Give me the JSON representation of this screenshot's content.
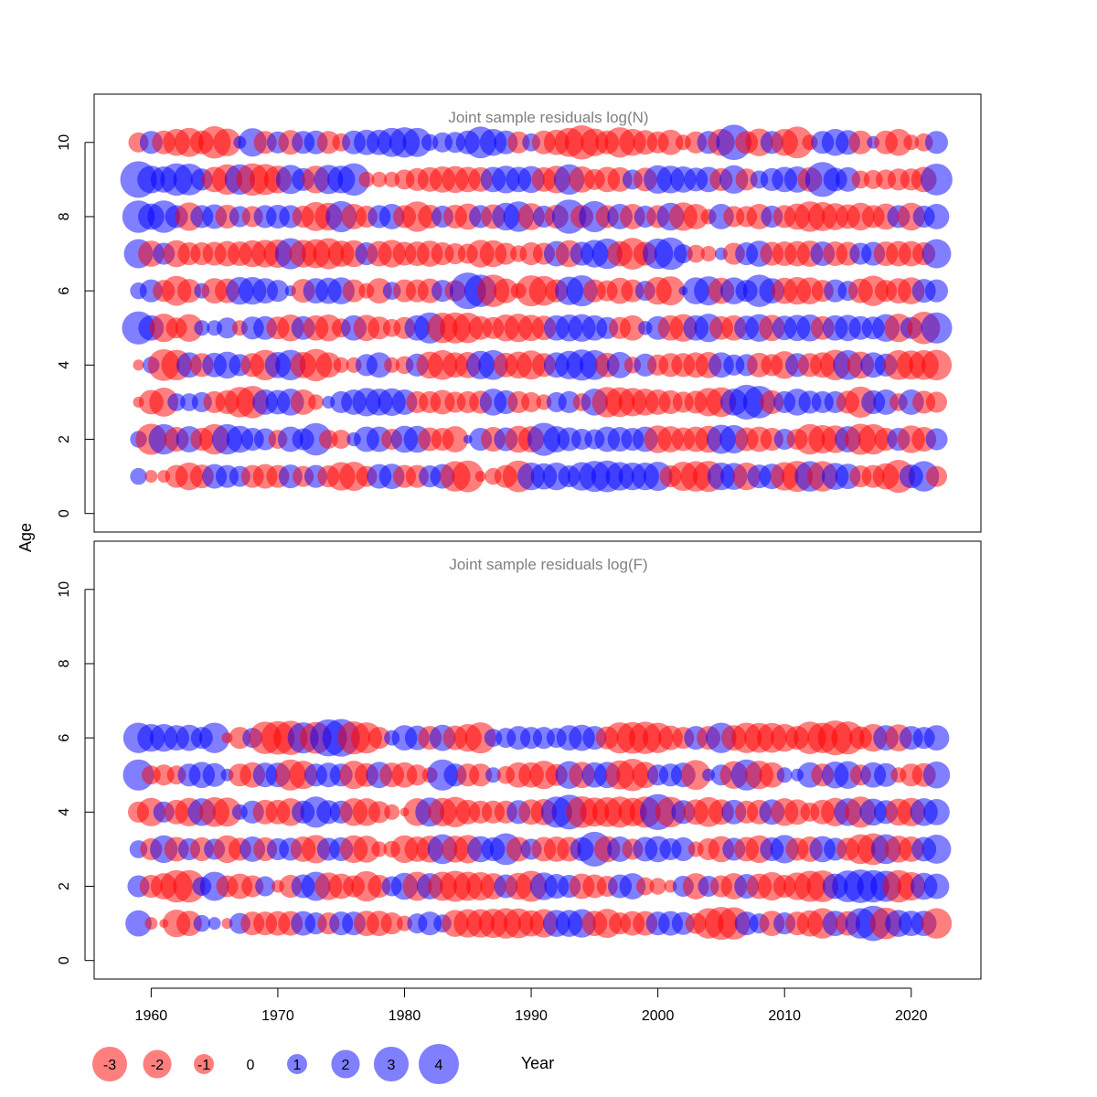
{
  "colors": {
    "negative": "#ff0000",
    "positive": "#0000ff",
    "frame": "#000000",
    "panel_title": "#808080"
  },
  "labels": {
    "ylabel": "Age",
    "xlabel": "Year"
  },
  "legend": {
    "items": [
      {
        "value": -3,
        "label": "-3"
      },
      {
        "value": -2,
        "label": "-2"
      },
      {
        "value": -1,
        "label": "-1"
      },
      {
        "value": 0,
        "label": "0"
      },
      {
        "value": 1,
        "label": "1"
      },
      {
        "value": 2,
        "label": "2"
      },
      {
        "value": 3,
        "label": "3"
      },
      {
        "value": 4,
        "label": "4"
      }
    ]
  },
  "chart_data": [
    {
      "type": "scatter",
      "title": "Joint sample residuals log(N)",
      "xlim": [
        1955.5,
        2025.5
      ],
      "ylim": [
        -0.5,
        11.3
      ],
      "xticks": [
        1960,
        1970,
        1980,
        1990,
        2000,
        2010,
        2020
      ],
      "yticks": [
        0,
        2,
        4,
        6,
        8,
        10
      ],
      "years": [
        1959,
        2022
      ],
      "ages": [
        1,
        2,
        3,
        4,
        5,
        6,
        7,
        8,
        9,
        10
      ],
      "residuals": {
        "1": [
          0.7,
          -0.4,
          -0.4,
          -1.3,
          -1.9,
          -1.4,
          1.5,
          1.3,
          1.1,
          -1.3,
          -1.5,
          -1.3,
          1.4,
          -1.1,
          1.3,
          -1.2,
          -2.0,
          -2.1,
          -1.1,
          1.5,
          1.6,
          -1.3,
          -1.3,
          1.2,
          1.5,
          -2.3,
          -2.5,
          -0.3,
          -0.7,
          -1.3,
          -2.5,
          1.9,
          1.7,
          1.9,
          1.2,
          2.0,
          2.4,
          2.5,
          2.0,
          1.9,
          1.9,
          2.1,
          -1.2,
          -2.1,
          -2.3,
          -2.4,
          1.9,
          1.8,
          -1.9,
          1.4,
          1.6,
          -2.0,
          -2.4,
          2.3,
          -2.3,
          1.8,
          1.6,
          -1.2,
          -1.3,
          -1.7,
          -2.7,
          1.4,
          2.3,
          -1.1
        ],
        "2": [
          0.7,
          -2.4,
          2.3,
          -1.5,
          1.7,
          -1.3,
          -2.3,
          2.3,
          1.8,
          1.3,
          1.2,
          -0.9,
          1.6,
          1.2,
          2.6,
          -0.9,
          -0.9,
          0.5,
          1.6,
          1.6,
          -1.1,
          1.8,
          1.8,
          -1.4,
          -1.3,
          -1.7,
          0.2,
          1.3,
          -1.5,
          1.4,
          -1.8,
          -1.7,
          2.7,
          1.7,
          1.4,
          1.1,
          1.0,
          1.6,
          1.5,
          1.3,
          1.6,
          -1.9,
          -1.7,
          -1.4,
          -1.6,
          -1.8,
          2.1,
          2.0,
          -1.4,
          -1.6,
          -1.3,
          1.1,
          -1.1,
          -2.3,
          -2.0,
          -1.9,
          1.7,
          -2.4,
          -2.3,
          -1.3,
          1.3,
          -1.9,
          -1.5,
          1.2
        ],
        "3": [
          -0.3,
          -1.5,
          -2.1,
          0.8,
          0.8,
          1.0,
          -1.2,
          -1.4,
          -2.3,
          -2.6,
          1.6,
          1.5,
          1.8,
          -1.6,
          -0.6,
          0.4,
          1.2,
          1.6,
          2.0,
          1.8,
          1.9,
          1.6,
          -1.2,
          -1.2,
          -1.5,
          -1.1,
          -1.2,
          -1.3,
          1.8,
          1.4,
          -1.2,
          -1.0,
          -0.6,
          1.0,
          1.2,
          -0.8,
          1.8,
          -2.3,
          -2.2,
          -2.0,
          -1.8,
          -1.6,
          -1.4,
          -1.1,
          -1.3,
          -2.0,
          -2.2,
          1.8,
          3.0,
          2.6,
          -1.4,
          1.2,
          1.8,
          1.3,
          1.2,
          1.2,
          -1.3,
          -2.4,
          1.4,
          1.6,
          -0.8,
          1.6,
          -1.3,
          -1.1
        ],
        "4": [
          -0.3,
          0.7,
          -2.5,
          -2.3,
          1.6,
          -1.4,
          1.5,
          1.8,
          1.2,
          -1.4,
          -2.3,
          1.7,
          2.3,
          -1.7,
          -2.6,
          -1.6,
          -0.6,
          -0.6,
          1.2,
          1.6,
          -0.6,
          -0.8,
          1.3,
          -1.8,
          -2.2,
          -1.6,
          -1.7,
          2.0,
          2.2,
          -1.5,
          -1.8,
          -2.1,
          -1.4,
          1.6,
          2.0,
          2.4,
          2.2,
          -1.5,
          1.7,
          -0.7,
          1.3,
          -1.1,
          -1.4,
          -1.4,
          -1.6,
          -1.7,
          1.6,
          1.1,
          1.2,
          -1.5,
          -1.2,
          -1.9,
          1.4,
          -1.4,
          -1.6,
          -2.3,
          2.2,
          -1.8,
          1.6,
          1.3,
          -2.2,
          -2.1,
          -2.2,
          -2.3
        ],
        "5": [
          2.7,
          1.6,
          -2.0,
          -1.1,
          -1.9,
          0.6,
          0.6,
          1.1,
          -0.6,
          1.3,
          1.4,
          -1.3,
          -1.8,
          1.4,
          -1.6,
          -1.8,
          -0.9,
          1.6,
          -1.7,
          -1.3,
          -0.8,
          -1.2,
          1.6,
          2.4,
          -2.3,
          -2.4,
          -2.3,
          -1.4,
          -1.2,
          -1.8,
          -2.0,
          -1.7,
          -1.5,
          1.6,
          1.8,
          1.9,
          1.6,
          1.2,
          -1.2,
          -1.6,
          0.5,
          1.4,
          -1.6,
          -1.9,
          1.6,
          2.0,
          -1.4,
          -1.6,
          1.5,
          1.9,
          -1.7,
          1.5,
          1.7,
          1.8,
          -1.4,
          1.6,
          1.7,
          1.4,
          1.3,
          1.9,
          -2.0,
          1.2,
          -2.6,
          2.4
        ],
        "6": [
          0.7,
          1.3,
          -1.2,
          -2.2,
          -1.4,
          0.6,
          -1.6,
          -1.5,
          1.9,
          1.9,
          1.6,
          1.2,
          0.3,
          -1.4,
          1.6,
          1.7,
          1.8,
          -1.3,
          -0.6,
          -1.6,
          0.8,
          -1.3,
          -1.3,
          -1.5,
          1.2,
          -1.1,
          3.3,
          2.6,
          -2.6,
          -1.5,
          -0.6,
          -2.4,
          -2.2,
          -1.3,
          2.0,
          2.4,
          -1.3,
          -1.1,
          -1.7,
          -1.3,
          1.0,
          -1.9,
          -2.1,
          0.2,
          1.8,
          2.1,
          -1.7,
          1.8,
          1.2,
          2.6,
          1.6,
          -1.7,
          -1.9,
          -1.8,
          -1.2,
          1.3,
          1.0,
          -1.5,
          -2.3,
          -1.2,
          -1.6,
          -1.8,
          1.4,
          1.3
        ],
        "7": [
          2.1,
          -1.7,
          1.2,
          -1.8,
          -1.3,
          -1.3,
          -1.4,
          -1.6,
          -1.5,
          -1.8,
          -1.9,
          -2.0,
          2.4,
          -1.9,
          -2.1,
          -2.4,
          -1.7,
          -1.8,
          1.3,
          -1.6,
          -1.9,
          -1.4,
          -1.5,
          -1.7,
          -1.3,
          -1.1,
          -1.0,
          -1.9,
          -1.8,
          -1.2,
          -0.7,
          -1.3,
          -1.2,
          1.6,
          -1.8,
          1.4,
          1.9,
          2.3,
          -1.6,
          -2.5,
          -1.4,
          2.3,
          2.6,
          0.9,
          -0.8,
          -0.6,
          0.4,
          -1.2,
          1.3,
          1.7,
          -1.4,
          -1.5,
          -1.6,
          -1.7,
          1.5,
          -1.5,
          -1.4,
          1.2,
          1.4,
          -1.5,
          -1.6,
          -1.6,
          -1.3,
          2.1
        ],
        "8": [
          2.6,
          1.7,
          2.6,
          1.3,
          -2.0,
          1.3,
          1.5,
          -1.4,
          1.1,
          -1.1,
          1.3,
          1.4,
          1.3,
          -1.2,
          -2.1,
          -1.9,
          2.4,
          -1.6,
          -1.2,
          1.3,
          1.6,
          -1.3,
          -2.3,
          -1.4,
          1.2,
          -1.4,
          -1.7,
          1.3,
          -1.5,
          1.9,
          2.3,
          -1.8,
          1.2,
          -1.4,
          2.9,
          -1.3,
          2.4,
          -1.3,
          1.6,
          -1.6,
          1.2,
          -1.3,
          1.9,
          -2.0,
          -1.6,
          -0.6,
          1.6,
          -1.1,
          -1.1,
          -1.6,
          1.2,
          -1.3,
          -1.7,
          -2.3,
          -2.1,
          -1.8,
          -1.5,
          -1.9,
          -1.3,
          -1.7,
          1.3,
          -1.9,
          1.2,
          1.6
        ],
        "9": [
          3.3,
          1.9,
          1.7,
          2.6,
          2.5,
          1.2,
          -1.6,
          -2.3,
          2.3,
          -2.6,
          -2.4,
          -1.9,
          2.1,
          1.3,
          -1.9,
          2.1,
          1.9,
          2.6,
          -0.6,
          -0.6,
          -0.6,
          -1.0,
          -1.3,
          -1.5,
          -1.7,
          -1.8,
          -1.6,
          -1.5,
          1.6,
          1.9,
          1.6,
          1.8,
          -1.5,
          -1.9,
          2.3,
          -1.7,
          -1.1,
          -1.6,
          -1.5,
          1.0,
          -1.4,
          2.0,
          1.9,
          1.7,
          1.4,
          1.6,
          -1.3,
          2.0,
          -1.2,
          0.8,
          1.3,
          1.6,
          1.7,
          -1.5,
          3.0,
          1.4,
          1.5,
          -0.8,
          -0.9,
          -1.0,
          -1.2,
          -1.2,
          -1.6,
          2.5
        ],
        "10": [
          -1.0,
          1.3,
          -1.4,
          -1.8,
          -2.1,
          -1.4,
          -2.6,
          -1.9,
          0.4,
          2.0,
          -1.3,
          1.2,
          -1.5,
          1.3,
          1.4,
          -1.3,
          -0.8,
          1.4,
          1.6,
          1.6,
          2.1,
          2.3,
          2.1,
          0.7,
          1.0,
          1.1,
          1.4,
          2.5,
          1.8,
          1.4,
          -1.2,
          0.8,
          -1.4,
          -1.6,
          -2.1,
          -2.9,
          -1.9,
          -1.4,
          -2.3,
          -1.8,
          -1.5,
          -1.2,
          -1.6,
          -0.6,
          -1.2,
          1.3,
          -1.8,
          3.1,
          -1.3,
          -1.9,
          1.3,
          -1.8,
          -2.5,
          -0.6,
          1.3,
          1.8,
          1.5,
          -1.4,
          0.4,
          -1.4,
          -1.8,
          -0.6,
          -0.8,
          1.3
        ]
      }
    },
    {
      "type": "scatter",
      "title": "Joint sample residuals log(F)",
      "xlim": [
        1955.5,
        2025.5
      ],
      "ylim": [
        -0.5,
        11.3
      ],
      "xticks": [
        1960,
        1970,
        1980,
        1990,
        2000,
        2010,
        2020
      ],
      "yticks": [
        0,
        2,
        4,
        6,
        8,
        10
      ],
      "years": [
        1959,
        2022
      ],
      "ages": [
        1,
        2,
        3,
        4,
        5,
        6
      ],
      "residuals": {
        "1": [
          1.7,
          -0.4,
          -0.2,
          -1.9,
          -1.6,
          0.7,
          0.4,
          -0.3,
          1.1,
          -1.4,
          -1.4,
          -1.5,
          -1.5,
          1.5,
          1.2,
          -1.2,
          1.4,
          1.4,
          -1.6,
          -1.6,
          -1.2,
          -0.6,
          1.0,
          1.4,
          0.8,
          -1.8,
          -2.0,
          -2.0,
          -2.1,
          -2.3,
          -2.2,
          -1.7,
          -2.0,
          1.8,
          1.8,
          2.0,
          -1.6,
          -2.1,
          -1.2,
          -1.5,
          -1.5,
          1.4,
          1.5,
          1.3,
          -1.1,
          -2.3,
          -2.7,
          -2.6,
          1.4,
          1.0,
          -1.6,
          1.2,
          -1.4,
          -1.7,
          -2.3,
          1.6,
          -1.5,
          2.3,
          3.1,
          -2.5,
          1.8,
          1.6,
          1.6,
          -2.3
        ],
        "2": [
          1.2,
          -1.3,
          -1.7,
          -2.6,
          -2.6,
          0.9,
          2.1,
          -1.2,
          -1.6,
          -1.2,
          1.0,
          -0.4,
          -1.3,
          1.4,
          2.1,
          -1.9,
          -1.6,
          -1.2,
          -2.3,
          -1.3,
          1.0,
          1.8,
          -2.1,
          1.7,
          -2.1,
          -2.4,
          -2.1,
          -2.0,
          -1.7,
          1.4,
          -1.8,
          -2.4,
          1.9,
          1.5,
          1.3,
          -1.6,
          -1.4,
          -1.1,
          1.4,
          1.7,
          -0.8,
          -0.7,
          -0.4,
          1.1,
          -1.7,
          1.1,
          -1.2,
          -1.7,
          1.5,
          -1.6,
          -2.0,
          -1.3,
          -1.9,
          -2.4,
          -2.5,
          1.6,
          2.5,
          2.8,
          2.6,
          2.4,
          -2.6,
          -2.0,
          1.8,
          1.6
        ],
        "3": [
          0.8,
          -1.2,
          1.9,
          -1.5,
          1.2,
          -1.4,
          1.1,
          -1.9,
          -1.3,
          1.6,
          -1.4,
          1.2,
          1.3,
          -1.6,
          -2.0,
          1.3,
          1.4,
          -1.9,
          -1.8,
          -0.6,
          -0.7,
          -1.9,
          -1.6,
          -1.8,
          2.2,
          -1.8,
          -2.0,
          1.7,
          1.4,
          2.5,
          -1.5,
          1.1,
          -1.5,
          -1.6,
          -1.5,
          1.4,
          3.0,
          -1.7,
          1.6,
          -1.1,
          1.5,
          1.7,
          1.2,
          1.4,
          -0.6,
          -1.2,
          -1.7,
          1.3,
          -1.5,
          -1.9,
          1.4,
          2.0,
          -1.3,
          -1.6,
          1.7,
          1.3,
          -1.3,
          -2.2,
          -2.5,
          2.2,
          -1.8,
          -1.6,
          1.5,
          2.1
        ],
        "4": [
          -1.1,
          -2.0,
          1.1,
          -1.5,
          -2.0,
          1.9,
          -2.2,
          -2.1,
          0.6,
          1.3,
          -1.5,
          -1.5,
          -1.9,
          1.3,
          2.4,
          1.4,
          1.3,
          -1.9,
          -1.9,
          -1.2,
          -0.6,
          -0.2,
          -1.9,
          2.1,
          -2.0,
          -2.3,
          -1.5,
          -1.3,
          -1.3,
          -1.3,
          1.4,
          -1.6,
          -1.7,
          2.4,
          3.0,
          -2.5,
          -2.1,
          -2.2,
          -2.4,
          -2.0,
          -2.4,
          3.2,
          -2.3,
          1.4,
          -1.6,
          -2.2,
          -1.6,
          1.5,
          -1.3,
          -1.5,
          1.6,
          -1.9,
          -1.6,
          -0.9,
          -1.5,
          -2.0,
          1.9,
          -2.4,
          1.8,
          1.4,
          -1.8,
          -2.0,
          1.9,
          1.7
        ],
        "5": [
          2.4,
          -0.9,
          -1.1,
          -0.9,
          1.3,
          1.7,
          1.4,
          0.4,
          -1.3,
          -1.6,
          1.5,
          1.5,
          -2.4,
          -2.0,
          1.3,
          1.5,
          1.3,
          -2.0,
          -1.4,
          1.7,
          -1.5,
          -1.6,
          -1.1,
          -0.6,
          2.4,
          1.3,
          -1.3,
          -1.3,
          0.6,
          -0.8,
          -1.6,
          -1.6,
          -2.0,
          -1.2,
          1.9,
          -1.7,
          1.6,
          1.7,
          -2.1,
          -2.6,
          -1.7,
          1.1,
          1.3,
          1.5,
          -2.2,
          0.4,
          1.1,
          -1.9,
          2.4,
          -2.0,
          -1.6,
          0.6,
          0.4,
          1.6,
          -1.3,
          1.8,
          1.9,
          -1.1,
          1.6,
          1.4,
          -0.6,
          -1.3,
          -1.4,
          1.8
        ],
        "6": [
          2.3,
          1.9,
          1.9,
          1.6,
          1.7,
          1.2,
          2.3,
          -0.3,
          -1.2,
          1.0,
          -2.6,
          -2.8,
          -2.9,
          2.4,
          -2.5,
          3.4,
          3.5,
          -2.7,
          -2.4,
          -1.2,
          0.6,
          1.6,
          1.5,
          -1.4,
          1.7,
          -1.5,
          -1.9,
          -2.4,
          0.8,
          1.0,
          1.4,
          1.2,
          1.2,
          1.0,
          1.6,
          1.7,
          1.4,
          -1.3,
          -2.4,
          -2.5,
          -2.6,
          -2.3,
          -1.5,
          -1.2,
          1.4,
          -1.4,
          2.3,
          -1.6,
          -2.3,
          -2.2,
          -2.2,
          -1.9,
          -1.4,
          -2.6,
          -2.3,
          -3.0,
          -2.7,
          -1.3,
          -1.9,
          1.6,
          -1.8,
          1.4,
          1.2,
          1.6
        ]
      }
    }
  ]
}
